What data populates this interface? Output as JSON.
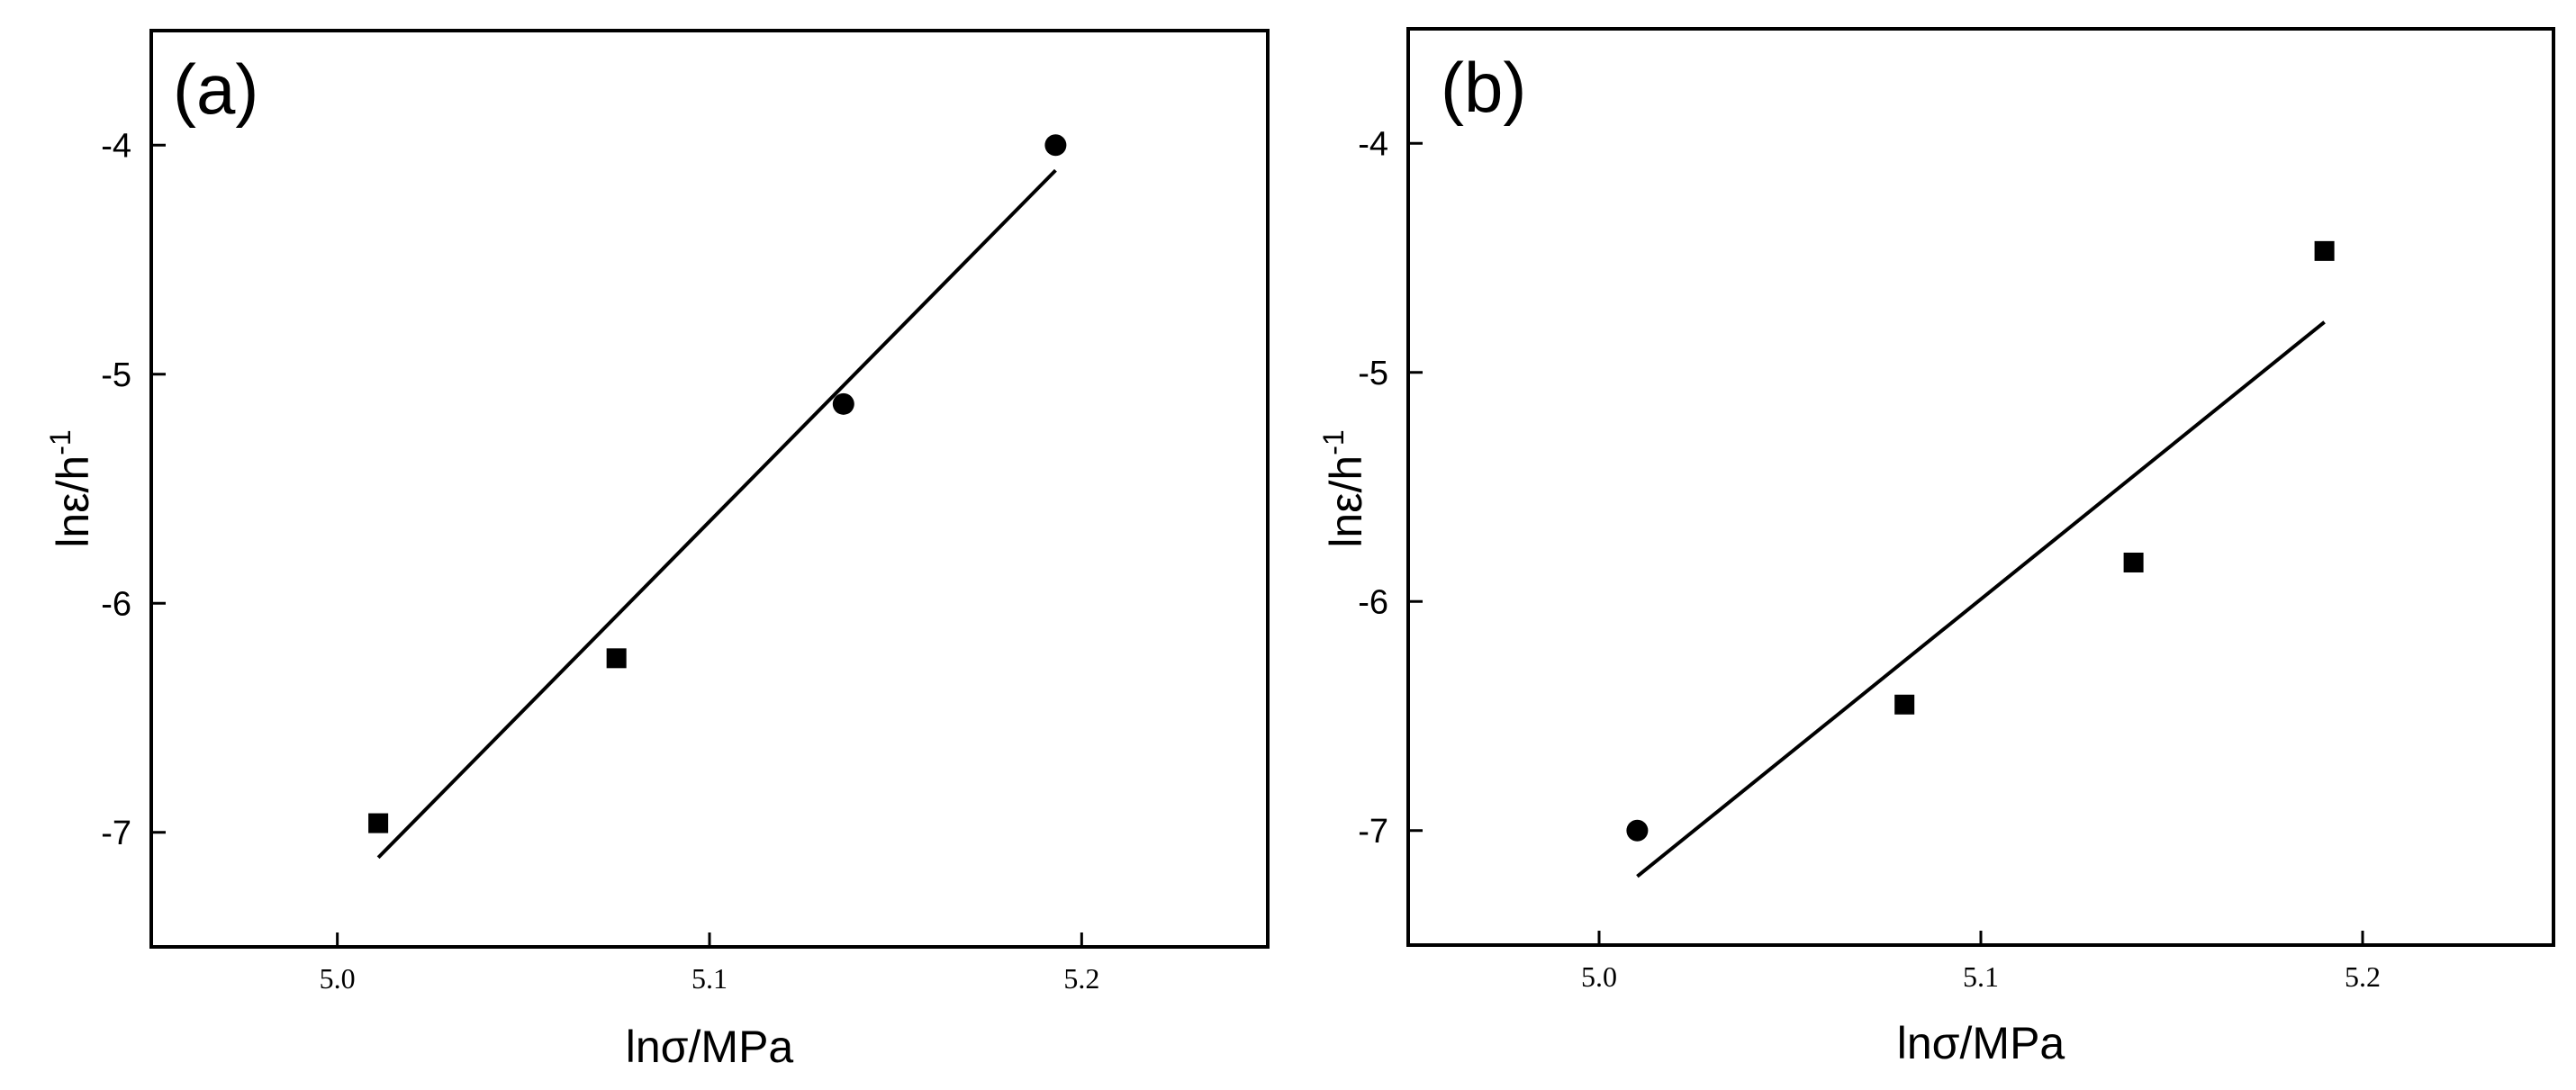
{
  "chart_data": [
    {
      "type": "scatter",
      "panel_label": "(a)",
      "xlabel": "lnσ/MPa",
      "ylabel_main": "lnε/h",
      "ylabel_sup": "-1",
      "xlim": [
        4.95,
        5.25
      ],
      "ylim": [
        -7.5,
        -3.5
      ],
      "xticks": [
        5.0,
        5.1,
        5.2
      ],
      "xtick_labels": [
        "5.0",
        "5.1",
        "5.2"
      ],
      "yticks": [
        -7,
        -6,
        -5,
        -4
      ],
      "ytick_labels": [
        "-7",
        "-6",
        "-5",
        "-4"
      ],
      "points": [
        {
          "x": 5.011,
          "y": -6.96,
          "marker": "square"
        },
        {
          "x": 5.075,
          "y": -6.24,
          "marker": "square"
        },
        {
          "x": 5.136,
          "y": -5.13,
          "marker": "circle"
        },
        {
          "x": 5.193,
          "y": -4.0,
          "marker": "circle"
        }
      ],
      "fit_line": {
        "x": [
          5.011,
          5.193
        ],
        "y": [
          -7.11,
          -4.11
        ]
      },
      "grid": false
    },
    {
      "type": "scatter",
      "panel_label": "(b)",
      "xlabel": "lnσ/MPa",
      "ylabel_main": "lnε/h",
      "ylabel_sup": "-1",
      "xlim": [
        4.95,
        5.25
      ],
      "ylim": [
        -7.5,
        -3.5
      ],
      "xticks": [
        5.0,
        5.1,
        5.2
      ],
      "xtick_labels": [
        "5.0",
        "5.1",
        "5.2"
      ],
      "yticks": [
        -7,
        -6,
        -5,
        -4
      ],
      "ytick_labels": [
        "-7",
        "-6",
        "-5",
        "-4"
      ],
      "points": [
        {
          "x": 5.01,
          "y": -7.0,
          "marker": "circle"
        },
        {
          "x": 5.08,
          "y": -6.45,
          "marker": "square"
        },
        {
          "x": 5.14,
          "y": -5.83,
          "marker": "square"
        },
        {
          "x": 5.19,
          "y": -4.47,
          "marker": "square"
        }
      ],
      "fit_line": {
        "x": [
          5.01,
          5.19
        ],
        "y": [
          -7.2,
          -4.78
        ]
      },
      "grid": false
    }
  ]
}
